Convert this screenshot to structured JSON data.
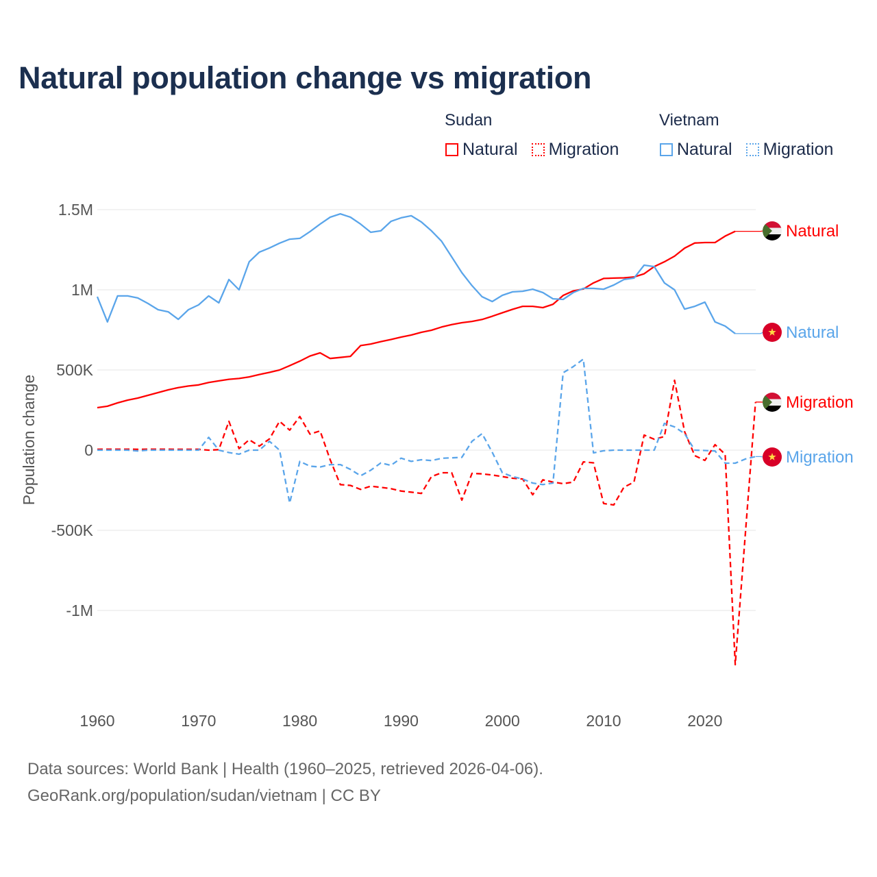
{
  "title": "Natural population change vs migration",
  "legend": {
    "groups": [
      {
        "name": "Sudan",
        "items": [
          {
            "label": "Natural",
            "style": "solid",
            "color": "#ff0000"
          },
          {
            "label": "Migration",
            "style": "dotted",
            "color": "#ff0000"
          }
        ]
      },
      {
        "name": "Vietnam",
        "items": [
          {
            "label": "Natural",
            "style": "solid",
            "color": "#5aa5ea"
          },
          {
            "label": "Migration",
            "style": "dotted",
            "color": "#5aa5ea"
          }
        ]
      }
    ]
  },
  "footer": {
    "line1": "Data sources: World Bank | Health (1960–2025, retrieved 2026-04-06).",
    "line2": "GeoRank.org/population/sudan/vietnam | CC BY"
  },
  "chart_data": {
    "type": "line",
    "title": "Natural population change vs migration",
    "xlabel": "",
    "ylabel": "Population change",
    "xlim": [
      1960,
      2025
    ],
    "ylim": [
      -1400000,
      1550000
    ],
    "grid": true,
    "legend_position": "top-right",
    "x_ticks": [
      1960,
      1970,
      1980,
      1990,
      2000,
      2010,
      2020
    ],
    "x_tick_labels": [
      "1960",
      "1970",
      "1980",
      "1990",
      "2000",
      "2010",
      "2020"
    ],
    "y_ticks": [
      1500000,
      1000000,
      500000,
      0,
      -500000,
      -1000000
    ],
    "y_tick_labels": [
      "1.5M",
      "1M",
      "500K",
      "0",
      "-500K",
      "-1M"
    ],
    "x_start": 1960,
    "series": [
      {
        "name": "Sudan Natural",
        "country": "Sudan",
        "label": "Natural",
        "color": "#ff0000",
        "dash": false,
        "flag": "sudan",
        "values_thousands": [
          265,
          274,
          295,
          312,
          325,
          342,
          359,
          376,
          390,
          400,
          407,
          422,
          432,
          442,
          447,
          457,
          472,
          485,
          500,
          527,
          555,
          587,
          607,
          572,
          578,
          585,
          652,
          662,
          677,
          690,
          705,
          718,
          735,
          748,
          768,
          783,
          795,
          803,
          815,
          835,
          857,
          878,
          897,
          897,
          889,
          910,
          965,
          993,
          1005,
          1043,
          1071,
          1073,
          1075,
          1080,
          1100,
          1145,
          1175,
          1210,
          1260,
          1292,
          1295,
          1295,
          1335,
          1365
        ]
      },
      {
        "name": "Vietnam Natural",
        "country": "Vietnam",
        "label": "Natural",
        "color": "#5aa5ea",
        "dash": false,
        "flag": "vietnam",
        "values_thousands": [
          957,
          800,
          962,
          962,
          949,
          915,
          876,
          863,
          816,
          876,
          906,
          962,
          919,
          1064,
          1000,
          1175,
          1235,
          1261,
          1291,
          1316,
          1321,
          1363,
          1410,
          1453,
          1474,
          1453,
          1410,
          1359,
          1368,
          1427,
          1449,
          1462,
          1423,
          1368,
          1303,
          1205,
          1107,
          1026,
          957,
          927,
          966,
          987,
          991,
          1004,
          983,
          944,
          940,
          983,
          1009,
          1009,
          1004,
          1030,
          1064,
          1073,
          1154,
          1145,
          1043,
          1000,
          880,
          897,
          923,
          800,
          774,
          727
        ]
      },
      {
        "name": "Sudan Migration",
        "country": "Sudan",
        "label": "Migration",
        "color": "#ff0000",
        "dash": true,
        "flag": "sudan",
        "values_thousands": [
          5,
          6,
          6,
          6,
          5,
          6,
          6,
          6,
          5,
          5,
          5,
          0,
          3,
          180,
          10,
          65,
          25,
          70,
          180,
          125,
          210,
          100,
          120,
          -60,
          -215,
          -220,
          -245,
          -225,
          -232,
          -240,
          -255,
          -262,
          -270,
          -165,
          -141,
          -141,
          -312,
          -145,
          -148,
          -155,
          -165,
          -175,
          -180,
          -278,
          -185,
          -199,
          -209,
          -199,
          -73,
          -79,
          -333,
          -342,
          -231,
          -199,
          94,
          68,
          85,
          436,
          115,
          -34,
          -64,
          34,
          -26,
          -1338,
          null,
          300
        ]
      },
      {
        "name": "Vietnam Migration",
        "country": "Vietnam",
        "label": "Migration",
        "color": "#5aa5ea",
        "dash": true,
        "flag": "vietnam",
        "values_thousands": [
          0,
          0,
          0,
          0,
          -5,
          0,
          0,
          0,
          0,
          0,
          0,
          80,
          0,
          -15,
          -25,
          0,
          0,
          55,
          0,
          -330,
          -70,
          -100,
          -105,
          -90,
          -90,
          -120,
          -160,
          -125,
          -80,
          -95,
          -50,
          -70,
          -60,
          -65,
          -51,
          -48,
          -45,
          55,
          103,
          -13,
          -141,
          -165,
          -180,
          -205,
          -215,
          -205,
          483,
          521,
          568,
          -17,
          -4,
          0,
          0,
          0,
          0,
          0,
          167,
          145,
          103,
          0,
          -2,
          -5,
          -81,
          -81,
          -55,
          -40
        ]
      }
    ]
  }
}
